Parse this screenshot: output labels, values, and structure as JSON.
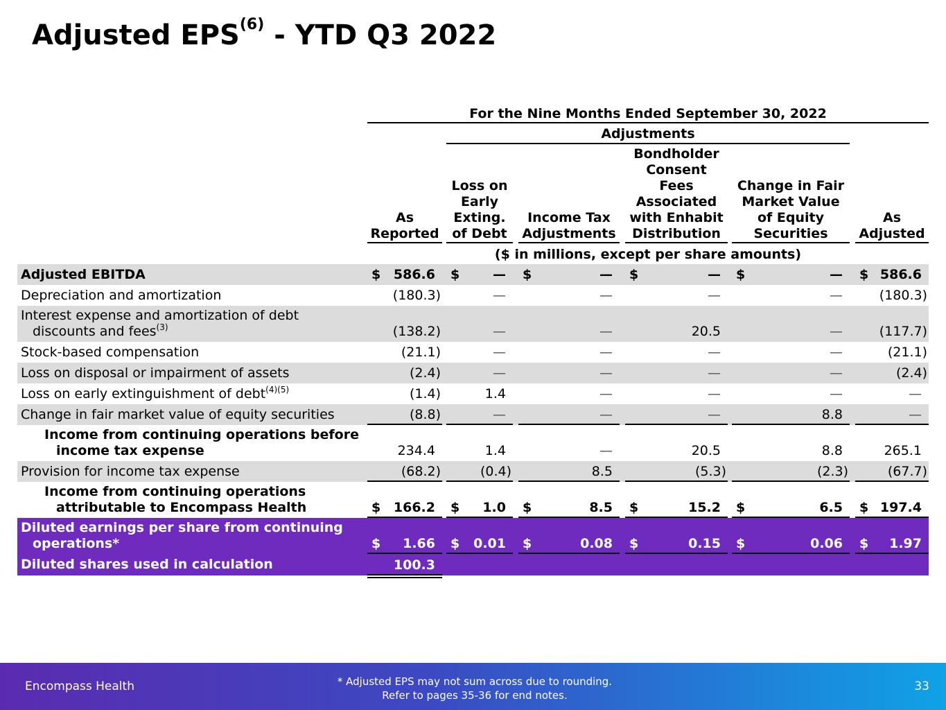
{
  "title": {
    "main": "Adjusted EPS",
    "sup": "(6)",
    "rest": " - YTD Q3 2022"
  },
  "header": {
    "period": "For the Nine Months Ended September 30, 2022",
    "adjustments": "Adjustments",
    "units": "($ in millions, except per share amounts)",
    "columns": [
      [
        "As",
        "Reported"
      ],
      [
        "Loss on",
        "Early",
        "Exting.",
        "of Debt"
      ],
      [
        "Income Tax",
        "Adjustments"
      ],
      [
        "Bondholder",
        "Consent",
        "Fees",
        "Associated",
        "with Enhabit",
        "Distribution"
      ],
      [
        "Change in Fair",
        "Market Value",
        "of Equity",
        "Securities"
      ],
      [
        "As",
        "Adjusted"
      ]
    ]
  },
  "rows": [
    {
      "label": [
        "Adjusted EBITDA"
      ],
      "values": [
        "586.6",
        "—",
        "—",
        "—",
        "—",
        "586.6"
      ]
    },
    {
      "label": [
        "Depreciation and amortization"
      ],
      "values": [
        "(180.3)",
        "—",
        "—",
        "—",
        "—",
        "(180.3)"
      ]
    },
    {
      "label": [
        "Interest expense and amortization of debt",
        "discounts and fees"
      ],
      "sup": "(3)",
      "values": [
        "(138.2)",
        "—",
        "—",
        "20.5",
        "—",
        "(117.7)"
      ]
    },
    {
      "label": [
        "Stock-based compensation"
      ],
      "values": [
        "(21.1)",
        "—",
        "—",
        "—",
        "—",
        "(21.1)"
      ]
    },
    {
      "label": [
        "Loss on disposal or impairment of assets"
      ],
      "values": [
        "(2.4)",
        "—",
        "—",
        "—",
        "—",
        "(2.4)"
      ]
    },
    {
      "label": [
        "Loss on early extinguishment of debt"
      ],
      "sup": "(4)(5)",
      "values": [
        "(1.4)",
        "1.4",
        "—",
        "—",
        "—",
        "—"
      ]
    },
    {
      "label": [
        "Change in fair market value of equity securities"
      ],
      "values": [
        "(8.8)",
        "—",
        "—",
        "—",
        "8.8",
        "—"
      ]
    },
    {
      "label": [
        "Income from continuing operations before",
        "income tax expense"
      ],
      "values": [
        "234.4",
        "1.4",
        "—",
        "20.5",
        "8.8",
        "265.1"
      ]
    },
    {
      "label": [
        "Provision for income tax expense"
      ],
      "values": [
        "(68.2)",
        "(0.4)",
        "8.5",
        "(5.3)",
        "(2.3)",
        "(67.7)"
      ]
    },
    {
      "label": [
        "Income from continuing operations",
        "attributable to Encompass Health"
      ],
      "values": [
        "166.2",
        "1.0",
        "8.5",
        "15.2",
        "6.5",
        "197.4"
      ]
    },
    {
      "label": [
        "Diluted earnings per share from continuing",
        "operations*"
      ],
      "values": [
        "1.66",
        "0.01",
        "0.08",
        "0.15",
        "0.06",
        "1.97"
      ]
    },
    {
      "label": [
        "Diluted shares used in calculation"
      ],
      "values": [
        "100.3"
      ]
    }
  ],
  "currency_symbol": "$",
  "footer": {
    "brand": "Encompass Health",
    "note_line1": "*  Adjusted EPS may not sum across due to rounding.",
    "note_line2": "Refer to pages 35-36 for end notes.",
    "page": "33"
  },
  "colors": {
    "purple_band": "#6f2bbd",
    "shaded_row": "#dcdcdc"
  }
}
